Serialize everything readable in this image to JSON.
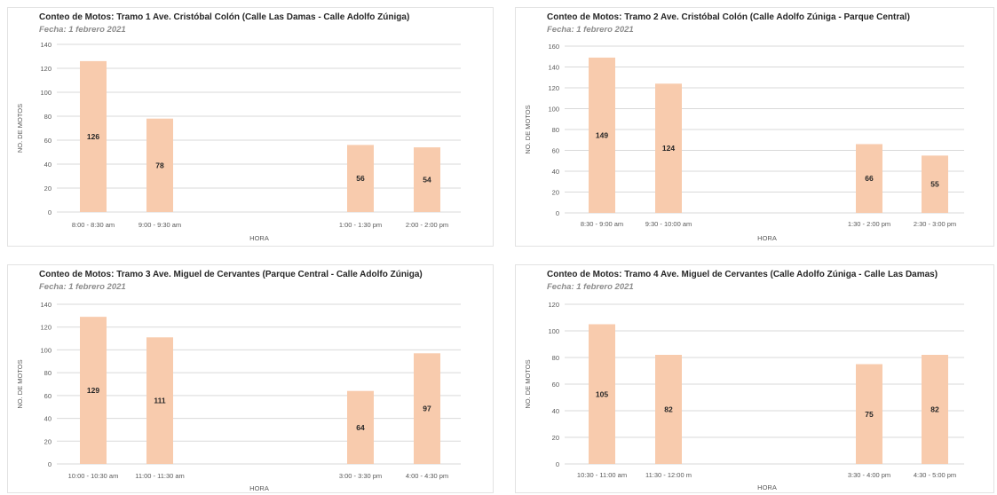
{
  "colors": {
    "bar": "#f8cbad",
    "grid": "#d9d9d9",
    "axis_text": "#595959",
    "label_text": "#262626"
  },
  "chart_data": [
    {
      "type": "bar",
      "title": "Conteo de Motos: Tramo 1 Ave. Cristóbal Colón (Calle Las Damas - Calle Adolfo Zúniga)",
      "subtitle": "Fecha: 1 febrero 2021",
      "xlabel": "HORA",
      "ylabel": "NO. DE MOTOS",
      "ylim": [
        0,
        140
      ],
      "yticks": [
        0,
        20,
        40,
        60,
        80,
        100,
        120,
        140
      ],
      "categories": [
        "8:00 - 8:30 am",
        "9:00 - 9:30 am",
        "1:00 - 1:30 pm",
        "2:00 - 2:00 pm"
      ],
      "values": [
        126,
        78,
        56,
        54
      ],
      "grid": true
    },
    {
      "type": "bar",
      "title": "Conteo de Motos: Tramo 2 Ave. Cristóbal Colón (Calle Adolfo Zúniga - Parque Central)",
      "subtitle": "Fecha: 1 febrero 2021",
      "xlabel": "HORA",
      "ylabel": "NO. DE MOTOS",
      "ylim": [
        0,
        160
      ],
      "yticks": [
        0,
        20,
        40,
        60,
        80,
        100,
        120,
        140,
        160
      ],
      "categories": [
        "8:30 - 9:00 am",
        "9:30 - 10:00 am",
        "1:30 - 2:00 pm",
        "2:30 - 3:00 pm"
      ],
      "values": [
        149,
        124,
        66,
        55
      ],
      "grid": true
    },
    {
      "type": "bar",
      "title": "Conteo de Motos: Tramo 3 Ave. Miguel de Cervantes (Parque Central - Calle Adolfo Zúniga)",
      "subtitle": "Fecha: 1 febrero 2021",
      "xlabel": "HORA",
      "ylabel": "NO. DE MOTOS",
      "ylim": [
        0,
        140
      ],
      "yticks": [
        0,
        20,
        40,
        60,
        80,
        100,
        120,
        140
      ],
      "categories": [
        "10:00 - 10:30 am",
        "11:00 - 11:30 am",
        "3:00 - 3:30 pm",
        "4:00 - 4:30 pm"
      ],
      "values": [
        129,
        111,
        64,
        97
      ],
      "grid": true
    },
    {
      "type": "bar",
      "title": "Conteo de Motos: Tramo 4 Ave. Miguel de Cervantes (Calle Adolfo Zúniga - Calle Las Damas)",
      "subtitle": "Fecha: 1 febrero 2021",
      "xlabel": "HORA",
      "ylabel": "NO. DE MOTOS",
      "ylim": [
        0,
        120
      ],
      "yticks": [
        0,
        20,
        40,
        60,
        80,
        100,
        120
      ],
      "categories": [
        "10:30 - 11:00 am",
        "11:30 - 12:00 m",
        "3:30 - 4:00 pm",
        "4:30 - 5:00 pm"
      ],
      "values": [
        105,
        82,
        75,
        82
      ],
      "grid": true
    }
  ]
}
